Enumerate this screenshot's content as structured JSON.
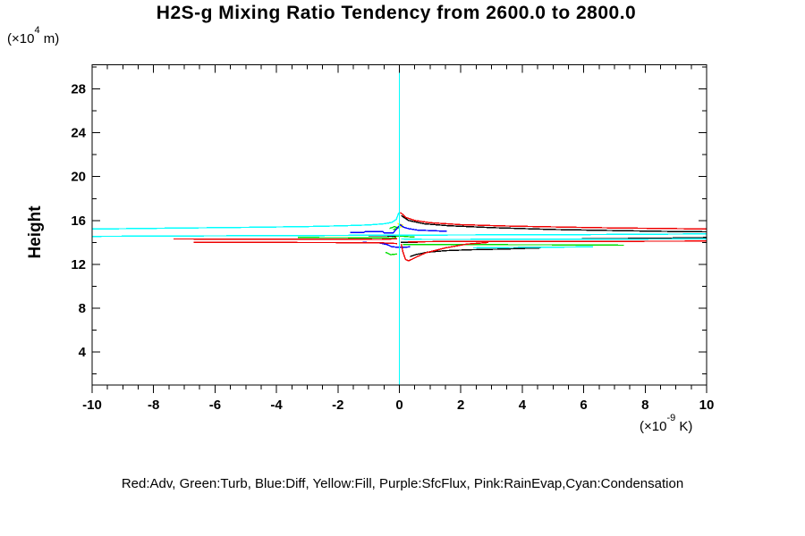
{
  "title": "H2S-g Mixing Ratio Tendency from 2600.0 to 2800.0",
  "legend_text": "Red:Adv, Green:Turb, Blue:Diff, Yellow:Fill, Purple:SfcFlux, Pink:RainEvap,Cyan:Condensation",
  "y_axis": {
    "label": "Height",
    "unit_prefix": "(×10",
    "unit_exp": "4",
    "unit_suffix": " m)",
    "major_ticks": [
      4,
      8,
      12,
      16,
      20,
      24,
      28
    ],
    "minor_step": 2,
    "range": [
      1,
      30.2
    ]
  },
  "x_axis": {
    "unit_prefix": "(×10",
    "unit_exp": "-9",
    "unit_suffix": " K)",
    "major_ticks": [
      -10,
      -8,
      -6,
      -4,
      -2,
      0,
      2,
      4,
      6,
      8,
      10
    ],
    "minor_step": 0.5,
    "range": [
      -10,
      10
    ]
  },
  "chart_data": {
    "type": "line",
    "title": "H2S-g Mixing Ratio Tendency from 2600.0 to 2800.0",
    "xlabel": "(×10-9 K)",
    "ylabel": "Height (×10 4 m)",
    "xlim": [
      -10,
      10
    ],
    "ylim": [
      1,
      30.2
    ],
    "x_major_ticks": [
      -10,
      -8,
      -6,
      -4,
      -2,
      0,
      2,
      4,
      6,
      8,
      10
    ],
    "y_major_ticks": [
      4,
      8,
      12,
      16,
      20,
      24,
      28
    ],
    "grid": false,
    "legend_position": "bottom-text-line",
    "series": [
      {
        "name": "SfcFlux",
        "color": "#a000a0",
        "strokes": [
          [
            [
              0,
              1
            ],
            [
              0,
              30.2
            ]
          ]
        ]
      },
      {
        "name": "RainEvap",
        "color": "#ff80c0",
        "strokes": [
          [
            [
              0,
              1
            ],
            [
              0,
              30.2
            ]
          ]
        ]
      },
      {
        "name": "Fill",
        "color": "#ffff00",
        "strokes": [
          [
            [
              -0.06,
              15.72
            ],
            [
              0.1,
              15.6
            ],
            [
              0.09,
              15.45
            ],
            [
              -0.08,
              15.38
            ],
            [
              0.02,
              15.3
            ]
          ]
        ]
      },
      {
        "name": "Turb",
        "color": "#00dd00",
        "strokes": [
          [
            [
              -3.3,
              14.45
            ],
            [
              -2.0,
              14.44
            ],
            [
              -0.8,
              14.42
            ],
            [
              -0.25,
              14.4
            ],
            [
              -0.1,
              14.47
            ]
          ],
          [
            [
              -0.3,
              14.56
            ],
            [
              0.05,
              14.58
            ],
            [
              0.3,
              14.52
            ],
            [
              0.5,
              14.5
            ]
          ],
          [
            [
              0.12,
              13.82
            ],
            [
              2.0,
              13.8
            ],
            [
              4.0,
              13.79
            ],
            [
              5.8,
              13.78
            ],
            [
              7.3,
              13.75
            ]
          ],
          [
            [
              -0.45,
              13.1
            ],
            [
              -0.28,
              12.88
            ],
            [
              -0.08,
              12.95
            ]
          ],
          [
            [
              -0.32,
              15.28
            ],
            [
              -0.15,
              15.45
            ],
            [
              -0.04,
              15.3
            ],
            [
              -0.2,
              15.18
            ]
          ]
        ]
      },
      {
        "name": "Diff",
        "color": "#0000ff",
        "strokes": [
          [
            [
              -1.6,
              14.92
            ],
            [
              -1.15,
              14.92
            ],
            [
              -1.1,
              15.0
            ],
            [
              -0.55,
              15.0
            ],
            [
              -0.5,
              14.88
            ],
            [
              -0.2,
              14.88
            ],
            [
              0.03,
              15.62
            ],
            [
              0.12,
              15.42
            ],
            [
              0.3,
              15.25
            ],
            [
              0.6,
              15.12
            ],
            [
              1.1,
              15.07
            ],
            [
              1.55,
              15.02
            ]
          ],
          [
            [
              -1.2,
              14.0
            ],
            [
              -0.7,
              13.98
            ],
            [
              -0.4,
              13.8
            ],
            [
              -0.25,
              13.62
            ],
            [
              -0.05,
              13.55
            ],
            [
              0.15,
              13.55
            ],
            [
              0.35,
              13.6
            ]
          ]
        ]
      },
      {
        "name": "Black(unlabeled)",
        "color": "#000000",
        "strokes": [
          [
            [
              0.06,
              16.45
            ],
            [
              0.3,
              16.0
            ],
            [
              0.8,
              15.7
            ],
            [
              1.6,
              15.52
            ],
            [
              3.0,
              15.35
            ],
            [
              5.0,
              15.18
            ],
            [
              7.0,
              15.08
            ],
            [
              8.8,
              15.0
            ],
            [
              10,
              14.97
            ]
          ],
          [
            [
              10,
              14.45
            ],
            [
              8.8,
              14.4
            ],
            [
              7.0,
              14.35
            ],
            [
              5.2,
              14.3
            ]
          ],
          [
            [
              0.35,
              12.72
            ],
            [
              0.55,
              12.9
            ],
            [
              0.9,
              13.1
            ],
            [
              1.5,
              13.25
            ],
            [
              2.3,
              13.33
            ],
            [
              3.4,
              13.4
            ],
            [
              4.6,
              13.5
            ]
          ],
          [
            [
              0.05,
              14.0
            ],
            [
              0.6,
              14.0
            ]
          ],
          [
            [
              -1.0,
              14.62
            ],
            [
              -0.45,
              14.6
            ],
            [
              -0.12,
              14.58
            ]
          ]
        ]
      },
      {
        "name": "Adv",
        "color": "#ee0000",
        "strokes": [
          [
            [
              0.03,
              16.75
            ],
            [
              0.2,
              16.3
            ],
            [
              0.5,
              16.0
            ],
            [
              1.0,
              15.8
            ],
            [
              2.0,
              15.62
            ],
            [
              3.5,
              15.5
            ],
            [
              5.0,
              15.42
            ],
            [
              7.0,
              15.32
            ],
            [
              8.5,
              15.28
            ],
            [
              10,
              15.22
            ]
          ],
          [
            [
              10,
              14.12
            ],
            [
              6,
              14.1
            ],
            [
              3,
              14.1
            ],
            [
              1.2,
              14.08
            ],
            [
              0.28,
              14.05
            ]
          ],
          [
            [
              -7.35,
              14.32
            ],
            [
              -5,
              14.3
            ],
            [
              -2.5,
              14.3
            ],
            [
              -0.6,
              14.28
            ],
            [
              -0.08,
              14.33
            ]
          ],
          [
            [
              -6.7,
              14.02
            ],
            [
              -4,
              14.0
            ],
            [
              -1.5,
              13.98
            ],
            [
              -0.6,
              13.97
            ],
            [
              -0.08,
              13.9
            ]
          ],
          [
            [
              0.06,
              13.85
            ],
            [
              0.12,
              13.1
            ],
            [
              0.2,
              12.45
            ],
            [
              0.3,
              12.32
            ],
            [
              0.5,
              12.6
            ],
            [
              0.85,
              13.05
            ],
            [
              1.5,
              13.5
            ],
            [
              2.2,
              13.85
            ],
            [
              2.9,
              14.0
            ]
          ]
        ]
      },
      {
        "name": "Condensation",
        "color": "#00ffff",
        "strokes": [
          [
            [
              0,
              1
            ],
            [
              0,
              30.2
            ]
          ],
          [
            [
              -10,
              15.22
            ],
            [
              -7.5,
              15.3
            ],
            [
              -5,
              15.38
            ],
            [
              -3,
              15.45
            ],
            [
              -1.8,
              15.52
            ],
            [
              -1.0,
              15.6
            ],
            [
              -0.5,
              15.7
            ],
            [
              -0.25,
              15.82
            ],
            [
              -0.1,
              16.1
            ],
            [
              -0.02,
              16.7
            ]
          ],
          [
            [
              -10,
              14.55
            ],
            [
              -6,
              14.6
            ],
            [
              -2,
              14.64
            ],
            [
              2,
              14.68
            ],
            [
              6,
              14.72
            ],
            [
              10,
              14.78
            ]
          ],
          [
            [
              10,
              14.33
            ],
            [
              7,
              14.3
            ],
            [
              4,
              14.3
            ],
            [
              2,
              14.28
            ],
            [
              0.8,
              14.28
            ],
            [
              0.06,
              14.32
            ]
          ],
          [
            [
              2.4,
              13.5
            ],
            [
              4.0,
              13.55
            ],
            [
              5.2,
              13.58
            ],
            [
              6.3,
              13.6
            ]
          ]
        ]
      }
    ]
  }
}
